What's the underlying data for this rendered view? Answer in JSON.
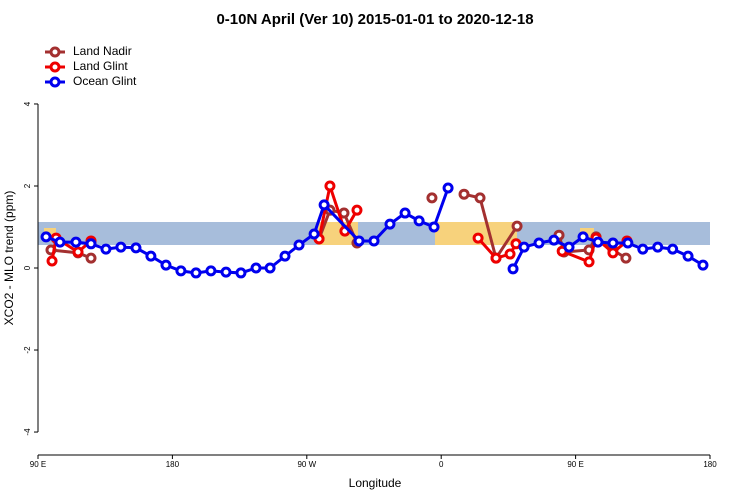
{
  "chart_data": {
    "type": "line",
    "title": "0-10N April (Ver 10)   2015-01-01 to 2020-12-18",
    "xlabel": "Longitude",
    "ylabel": "XCO2 - MLO trend (ppm)",
    "xlim": [
      90,
      540
    ],
    "xticks": [
      {
        "value": 90,
        "label": "90 E"
      },
      {
        "value": 180,
        "label": "180"
      },
      {
        "value": 270,
        "label": "90 W"
      },
      {
        "value": 360,
        "label": "0"
      },
      {
        "value": 450,
        "label": "90 E"
      },
      {
        "value": 540,
        "label": "180"
      }
    ],
    "ylim": [
      -4.56,
      5.56
    ],
    "yticks": [
      -4,
      -2,
      0,
      2,
      4
    ],
    "legend": "top-left",
    "series": [
      {
        "name": "Land Nadir",
        "color": "#a33030",
        "x": [
          98.7,
          116.8,
          125.5,
          200,
          278.2,
          285.5,
          294.9,
          303.6,
          330,
          353.8,
          365,
          375.3,
          386,
          396.7,
          410.8,
          425,
          438.9,
          442.2,
          459,
          463.7,
          475,
          483.7
        ],
        "values": [
          0.44,
          0.37,
          0.24,
          null,
          0.71,
          1.41,
          1.34,
          0.61,
          null,
          1.71,
          null,
          1.8,
          1.71,
          0.24,
          1.02,
          null,
          0.8,
          0.39,
          0.44,
          0.76,
          0.44,
          0.24
        ]
      },
      {
        "name": "Land Glint",
        "color": "#ee0000",
        "x": [
          99.4,
          102.1,
          116.8,
          125.5,
          200,
          278.2,
          285.5,
          295.5,
          303.6,
          340,
          384.7,
          396.7,
          406.1,
          410.1,
          425,
          441,
          459,
          463.7,
          475,
          484.4
        ],
        "values": [
          0.17,
          0.73,
          0.39,
          0.66,
          null,
          0.71,
          2.0,
          0.9,
          1.41,
          null,
          0.73,
          0.24,
          0.34,
          0.59,
          null,
          0.41,
          0.15,
          0.73,
          0.37,
          0.66
        ]
      },
      {
        "name": "Ocean Glint",
        "color": "#0000ee",
        "x": [
          95.4,
          104.7,
          115.4,
          125.5,
          135.5,
          145.5,
          155.6,
          165.6,
          175.7,
          185.7,
          195.8,
          205.8,
          215.9,
          225.9,
          236,
          245.4,
          255.4,
          264.8,
          274.9,
          281.6,
          305,
          315,
          325.7,
          335.8,
          345.2,
          355.2,
          364.6,
          386,
          408.1,
          415.5,
          425.5,
          435.5,
          445.6,
          455,
          465,
          475,
          485,
          495,
          505,
          515,
          525.3,
          535.3
        ],
        "values": [
          0.76,
          0.63,
          0.63,
          0.59,
          0.46,
          0.51,
          0.49,
          0.29,
          0.07,
          -0.07,
          -0.12,
          -0.07,
          -0.1,
          -0.12,
          0,
          0,
          0.29,
          0.56,
          0.83,
          1.54,
          0.66,
          0.66,
          1.07,
          1.34,
          1.15,
          1.0,
          1.95,
          null,
          -0.02,
          0.51,
          0.61,
          0.68,
          0.51,
          0.76,
          0.63,
          0.61,
          0.61,
          0.46,
          0.51,
          0.46,
          0.29,
          0.07
        ]
      }
    ]
  }
}
